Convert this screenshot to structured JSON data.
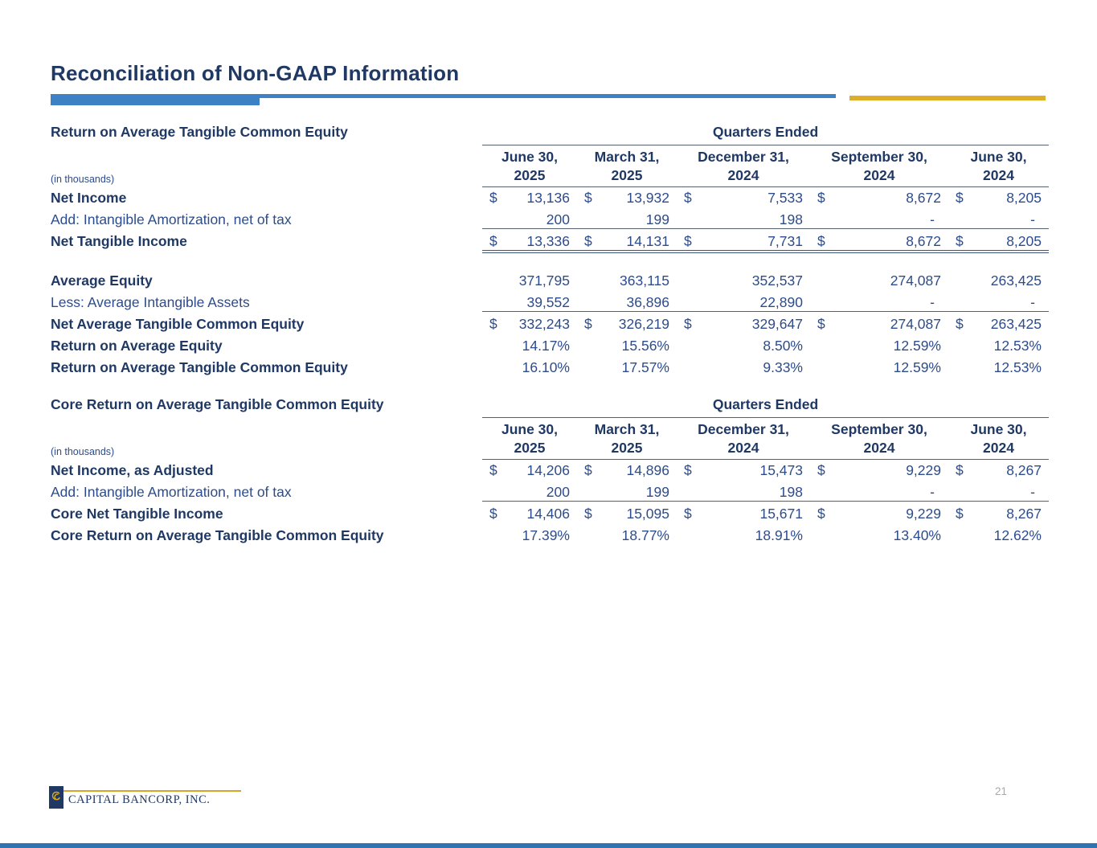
{
  "slide": {
    "title": "Reconciliation of Non-GAAP Information",
    "page_number": "21",
    "footer_logo_text": "CAPITAL BANCORP, INC."
  },
  "colors": {
    "navy": "#1f3864",
    "table_text_blue": "#2c4c8c",
    "divider_blue": "#3d80c4",
    "divider_gold": "#dfae28",
    "logo_gold": "#d4a626",
    "page_number_gray": "#a9a9a9"
  },
  "tables": [
    {
      "section_title": "Return on Average Tangible Common Equity",
      "quarters_ended_label": "Quarters Ended",
      "in_thousands_label": "(in thousands)",
      "columns": [
        {
          "line1": "June 30,",
          "line2": "2025"
        },
        {
          "line1": "March 31,",
          "line2": "2025"
        },
        {
          "line1": "December 31,",
          "line2": "2024"
        },
        {
          "line1": "September 30,",
          "line2": "2024"
        },
        {
          "line1": "June 30,",
          "line2": "2024"
        }
      ],
      "rows": [
        {
          "label": "Net Income",
          "bold": true,
          "dollar": true,
          "border": "",
          "values": [
            "13,136",
            "13,932",
            "7,533",
            "8,672",
            "8,205"
          ]
        },
        {
          "label": "Add: Intangible Amortization, net of tax",
          "bold": false,
          "dollar": false,
          "border": "bottom",
          "values": [
            "200",
            "199",
            "198",
            "-",
            "-"
          ]
        },
        {
          "label": "Net Tangible Income",
          "bold": true,
          "dollar": true,
          "border": "double",
          "values": [
            "13,336",
            "14,131",
            "7,731",
            "8,672",
            "8,205"
          ]
        },
        {
          "spacer": true
        },
        {
          "label": "Average Equity",
          "bold": true,
          "dollar": false,
          "border": "",
          "values": [
            "371,795",
            "363,115",
            "352,537",
            "274,087",
            "263,425"
          ]
        },
        {
          "label": "Less: Average Intangible Assets",
          "bold": false,
          "dollar": false,
          "border": "bottom",
          "values": [
            "39,552",
            "36,896",
            "22,890",
            "-",
            "-"
          ]
        },
        {
          "label": "Net Average Tangible Common Equity",
          "bold": true,
          "dollar": true,
          "border": "",
          "values": [
            "332,243",
            "326,219",
            "329,647",
            "274,087",
            "263,425"
          ]
        },
        {
          "label": "Return on Average Equity",
          "bold": true,
          "dollar": false,
          "border": "",
          "values": [
            "14.17%",
            "15.56%",
            "8.50%",
            "12.59%",
            "12.53%"
          ]
        },
        {
          "label": "Return on Average Tangible Common Equity",
          "bold": true,
          "dollar": false,
          "border": "",
          "values": [
            "16.10%",
            "17.57%",
            "9.33%",
            "12.59%",
            "12.53%"
          ]
        }
      ]
    },
    {
      "section_title": "Core Return on Average Tangible Common Equity",
      "quarters_ended_label": "Quarters Ended",
      "in_thousands_label": "(in thousands)",
      "columns": [
        {
          "line1": "June 30,",
          "line2": "2025"
        },
        {
          "line1": "March 31,",
          "line2": "2025"
        },
        {
          "line1": "December 31,",
          "line2": "2024"
        },
        {
          "line1": "September 30,",
          "line2": "2024"
        },
        {
          "line1": "June 30,",
          "line2": "2024"
        }
      ],
      "rows": [
        {
          "label": "Net Income, as Adjusted",
          "bold": true,
          "dollar": true,
          "border": "",
          "values": [
            "14,206",
            "14,896",
            "15,473",
            "9,229",
            "8,267"
          ]
        },
        {
          "label": "Add: Intangible Amortization, net of tax",
          "bold": false,
          "dollar": false,
          "border": "bottom",
          "values": [
            "200",
            "199",
            "198",
            "-",
            "-"
          ]
        },
        {
          "label": "Core Net Tangible Income",
          "bold": true,
          "dollar": true,
          "border": "",
          "values": [
            "14,406",
            "15,095",
            "15,671",
            "9,229",
            "8,267"
          ]
        },
        {
          "label": "Core Return on Average Tangible Common Equity",
          "bold": true,
          "dollar": false,
          "border": "",
          "values": [
            "17.39%",
            "18.77%",
            "18.91%",
            "13.40%",
            "12.62%"
          ]
        }
      ]
    }
  ]
}
